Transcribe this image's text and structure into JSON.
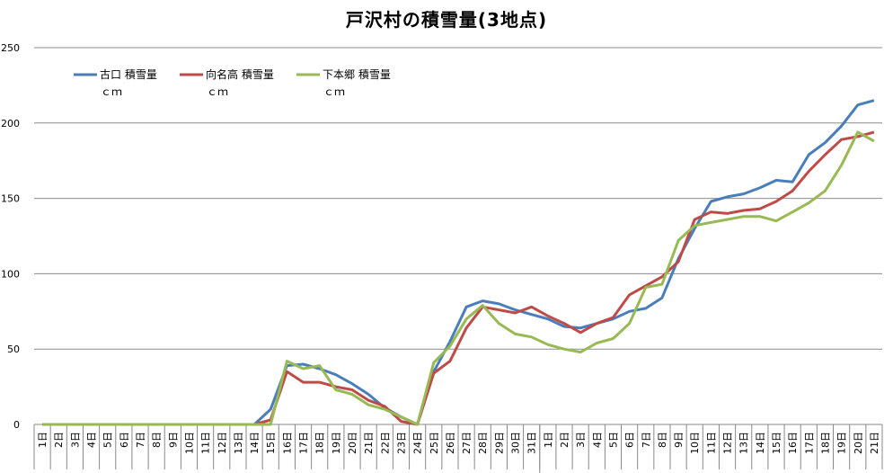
{
  "chart_data": {
    "type": "line",
    "title": "戸沢村の積雪量(3地点)",
    "ylim": [
      0,
      250
    ],
    "yticks": [
      0,
      50,
      100,
      150,
      200,
      250
    ],
    "grid": true,
    "legend_placement": "top-left",
    "categories": [
      "1日",
      "2日",
      "3日",
      "4日",
      "5日",
      "6日",
      "7日",
      "8日",
      "9日",
      "10日",
      "11日",
      "12日",
      "13日",
      "14日",
      "15日",
      "16日",
      "17日",
      "18日",
      "19日",
      "20日",
      "21日",
      "22日",
      "23日",
      "24日",
      "25日",
      "26日",
      "27日",
      "28日",
      "29日",
      "30日",
      "31日",
      "1日",
      "2日",
      "3日",
      "4日",
      "5日",
      "6日",
      "7日",
      "8日",
      "9日",
      "10日",
      "11日",
      "12日",
      "13日",
      "14日",
      "15日",
      "16日",
      "17日",
      "18日",
      "19日",
      "20日",
      "21日"
    ],
    "series": [
      {
        "name": "古口 積雪量",
        "unit": "ｃｍ",
        "color": "#4a7ebb",
        "values": [
          0,
          0,
          0,
          0,
          0,
          0,
          0,
          0,
          0,
          0,
          0,
          0,
          0,
          0,
          10,
          39,
          40,
          37,
          33,
          27,
          20,
          11,
          5,
          0,
          35,
          55,
          78,
          82,
          80,
          76,
          73,
          70,
          65,
          64,
          67,
          70,
          75,
          77,
          84,
          110,
          130,
          148,
          151,
          153,
          157,
          162,
          161,
          179,
          187,
          198,
          212,
          215
        ]
      },
      {
        "name": "向名高 積雪量",
        "unit": "ｃｍ",
        "color": "#be4b48",
        "values": [
          0,
          0,
          0,
          0,
          0,
          0,
          0,
          0,
          0,
          0,
          0,
          0,
          0,
          0,
          3,
          35,
          28,
          28,
          25,
          23,
          16,
          12,
          2,
          0,
          34,
          42,
          64,
          78,
          76,
          74,
          78,
          72,
          67,
          61,
          67,
          71,
          86,
          92,
          98,
          108,
          136,
          141,
          140,
          142,
          143,
          148,
          155,
          168,
          179,
          189,
          191,
          194
        ]
      },
      {
        "name": "下本郷 積雪量",
        "unit": "ｃｍ",
        "color": "#98b954",
        "values": [
          0,
          0,
          0,
          0,
          0,
          0,
          0,
          0,
          0,
          0,
          0,
          0,
          0,
          0,
          0,
          42,
          37,
          39,
          23,
          20,
          13,
          10,
          5,
          0,
          41,
          52,
          70,
          79,
          67,
          60,
          58,
          53,
          50,
          48,
          54,
          57,
          67,
          91,
          93,
          122,
          132,
          134,
          136,
          138,
          138,
          135,
          141,
          147,
          155,
          172,
          194,
          188
        ]
      }
    ]
  }
}
